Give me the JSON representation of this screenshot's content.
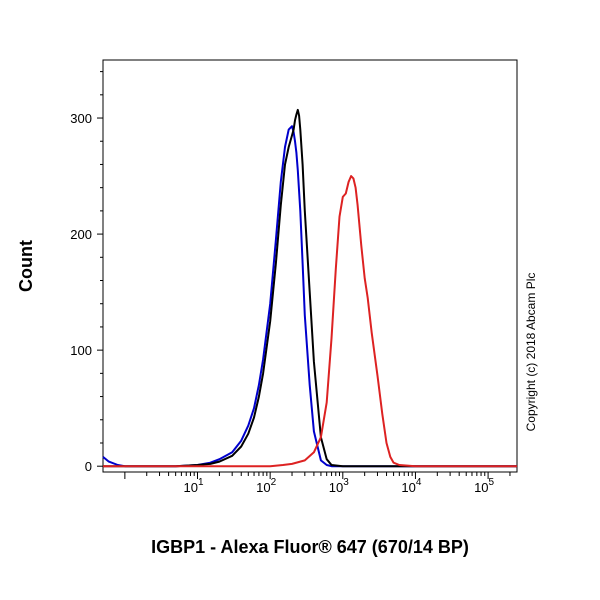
{
  "chart_data": {
    "type": "line",
    "xlabel": "IGBP1 - Alexa Fluor® 647 (670/14 BP)",
    "ylabel": "Count",
    "xscale": "log",
    "xlim": [
      0.5,
      250000
    ],
    "ylim": [
      -5,
      350
    ],
    "grid": false,
    "legend": "none",
    "annotation": "Copyright (c) 2018 Abcam Plc",
    "x_ticks": [
      {
        "value": 10,
        "base": "10",
        "exp": "1"
      },
      {
        "value": 100,
        "base": "10",
        "exp": "2"
      },
      {
        "value": 1000,
        "base": "10",
        "exp": "3"
      },
      {
        "value": 10000,
        "base": "10",
        "exp": "4"
      },
      {
        "value": 100000,
        "base": "10",
        "exp": "5"
      }
    ],
    "y_ticks": [
      {
        "value": 0,
        "label": "0"
      },
      {
        "value": 100,
        "label": "100"
      },
      {
        "value": 200,
        "label": "200"
      },
      {
        "value": 300,
        "label": "300"
      }
    ],
    "series": [
      {
        "color": "#0000cc",
        "x": [
          0.5,
          0.6,
          0.8,
          1,
          2,
          5,
          10,
          15,
          20,
          30,
          40,
          50,
          60,
          70,
          80,
          100,
          120,
          140,
          160,
          180,
          200,
          210,
          220,
          230,
          240,
          260,
          280,
          300,
          350,
          400,
          500,
          600,
          700,
          1000,
          2000,
          10000,
          250000
        ],
        "y": [
          8,
          4,
          1,
          0,
          0,
          0,
          1,
          3,
          6,
          12,
          22,
          35,
          50,
          70,
          92,
          140,
          195,
          245,
          275,
          290,
          293,
          288,
          280,
          270,
          255,
          220,
          175,
          130,
          70,
          30,
          5,
          1,
          0,
          0,
          0,
          0,
          0
        ]
      },
      {
        "color": "#000000",
        "x": [
          0.5,
          1,
          2,
          5,
          10,
          15,
          20,
          30,
          40,
          50,
          60,
          70,
          80,
          100,
          120,
          140,
          160,
          180,
          200,
          210,
          220,
          230,
          240,
          250,
          260,
          280,
          300,
          350,
          400,
          500,
          600,
          700,
          1000,
          2000,
          10000,
          250000
        ],
        "y": [
          0,
          0,
          0,
          0,
          1,
          2,
          4,
          9,
          17,
          28,
          42,
          60,
          80,
          125,
          175,
          225,
          260,
          275,
          285,
          290,
          298,
          303,
          307,
          302,
          290,
          260,
          220,
          150,
          90,
          25,
          6,
          1,
          0,
          0,
          0,
          0
        ]
      },
      {
        "color": "#dd2222",
        "x": [
          0.5,
          100,
          150,
          200,
          300,
          400,
          500,
          600,
          700,
          800,
          900,
          1000,
          1100,
          1200,
          1300,
          1400,
          1500,
          1600,
          1800,
          2000,
          2200,
          2500,
          3000,
          3500,
          4000,
          4500,
          5000,
          6000,
          10000,
          250000
        ],
        "y": [
          0,
          0,
          1,
          2,
          5,
          12,
          25,
          55,
          110,
          170,
          215,
          232,
          235,
          245,
          250,
          248,
          240,
          225,
          190,
          162,
          145,
          115,
          78,
          45,
          20,
          8,
          3,
          1,
          0,
          0
        ]
      }
    ]
  }
}
